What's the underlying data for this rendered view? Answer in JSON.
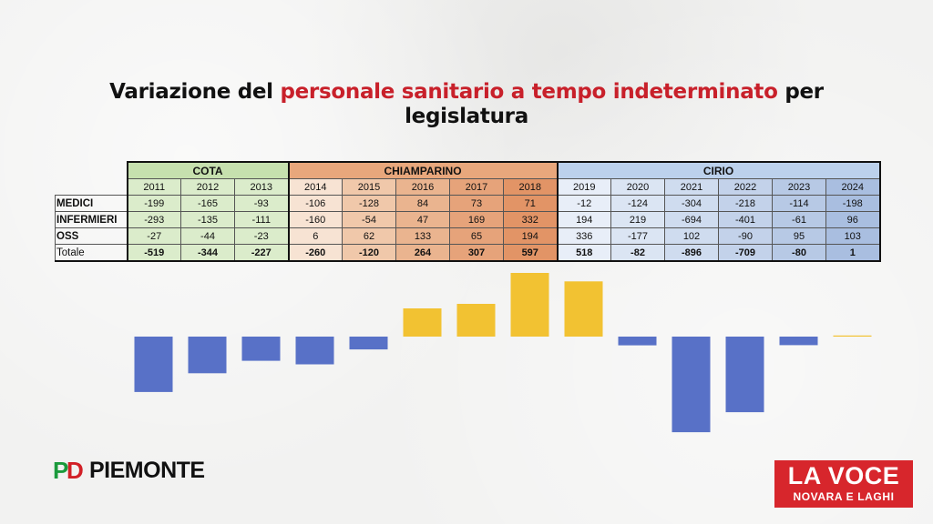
{
  "title": {
    "part1": "Variazione del ",
    "highlight": "personale sanitario a tempo indeterminato",
    "part2": " per legislatura"
  },
  "colors": {
    "highlight": "#c8202a",
    "bar_negative": "#5871c7",
    "bar_positive": "#f2c232",
    "cota": "#dbeccb",
    "chiamparino_header": "#e8a77c",
    "cirio_header": "#bcd1ec"
  },
  "chart_data": {
    "type": "table",
    "groups": [
      {
        "name": "COTA",
        "years": [
          "2011",
          "2012",
          "2013"
        ]
      },
      {
        "name": "CHIAMPARINO",
        "years": [
          "2014",
          "2015",
          "2016",
          "2017",
          "2018"
        ]
      },
      {
        "name": "CIRIO",
        "years": [
          "2019",
          "2020",
          "2021",
          "2022",
          "2023",
          "2024"
        ]
      }
    ],
    "categories": [
      "2011",
      "2012",
      "2013",
      "2014",
      "2015",
      "2016",
      "2017",
      "2018",
      "2019",
      "2020",
      "2021",
      "2022",
      "2023",
      "2024"
    ],
    "rows": [
      {
        "label": "MEDICI",
        "values": [
          "-199",
          "-165",
          "-93",
          "-106",
          "-128",
          "84",
          "73",
          "71",
          "-12",
          "-124",
          "-304",
          "-218",
          "-114",
          "-198"
        ]
      },
      {
        "label": "INFERMIERI",
        "values": [
          "-293",
          "-135",
          "-111",
          "-160",
          "-54",
          "47",
          "169",
          "332",
          "194",
          "219",
          "-694",
          "-401",
          "-61",
          "96"
        ]
      },
      {
        "label": "OSS",
        "values": [
          "-27",
          "-44",
          "-23",
          "6",
          "62",
          "133",
          "65",
          "194",
          "336",
          "-177",
          "102",
          "-90",
          "95",
          "103"
        ]
      }
    ],
    "total": {
      "label": "Totale",
      "values": [
        "-519",
        "-344",
        "-227",
        "-260",
        "-120",
        "264",
        "307",
        "597",
        "518",
        "-82",
        "-896",
        "-709",
        "-80",
        "1"
      ]
    },
    "bars": {
      "type": "bar",
      "categories": [
        "2011",
        "2012",
        "2013",
        "2014",
        "2015",
        "2016",
        "2017",
        "2018",
        "2019",
        "2020",
        "2021",
        "2022",
        "2023",
        "2024"
      ],
      "values": [
        -519,
        -344,
        -227,
        -260,
        -120,
        264,
        307,
        597,
        518,
        -82,
        -896,
        -709,
        -80,
        1
      ]
    }
  },
  "logos": {
    "pd_p": "P",
    "pd_d": "D",
    "pd_text": "PIEMONTE",
    "voce_line1": "LA VOCE",
    "voce_line2": "NOVARA E LAGHI"
  }
}
